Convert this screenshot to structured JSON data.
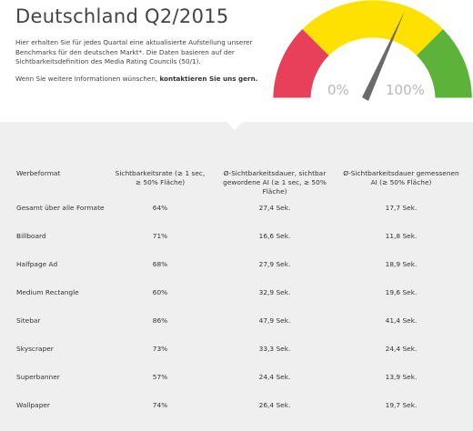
{
  "title": "Deutschland Q2/2015",
  "intro": "Hier erhalten Sie für jedes Quartal eine aktualisierte Aufstellung unserer Benchmarks für den deutschen Markt*. Die Daten basieren auf der Sichtbarkeitsdefinition des Media Rating Councils (50/1).",
  "more_text": "Wenn Sie weitere Informationen wünschen, ",
  "more_link": "kontaktieren Sie uns gern.",
  "gauge": {
    "min_label": "0%",
    "max_label": "100%",
    "colors": {
      "red": "#e8405a",
      "yellow": "#ffe100",
      "green": "#5db339",
      "needle": "#6a6a6a"
    }
  },
  "table": {
    "headers": [
      "Werbeformat",
      "Sichtbarkeitsrate (≥ 1 sec, ≥ 50% Fläche)",
      "Ø-Sichtbarkeitsdauer, sichtbar gewordene AI (≥ 1 sec, ≥ 50% Fläche)",
      "Ø-Sichtbarkeitsdauer gemessenen AI (≥ 50% Fläche)"
    ],
    "rows": [
      [
        "Gesamt über alle Formate",
        "64%",
        "27,4 Sek.",
        "17,7 Sek."
      ],
      [
        "Billboard",
        "71%",
        "16,6 Sek.",
        "11,8 Sek."
      ],
      [
        "Halfpage Ad",
        "68%",
        "27,9 Sek.",
        "18,9 Sek."
      ],
      [
        "Medium Rectangle",
        "60%",
        "32,9 Sek.",
        "19,6 Sek."
      ],
      [
        "Sitebar",
        "86%",
        "47,9 Sek.",
        "41,4 Sek."
      ],
      [
        "Skyscraper",
        "73%",
        "33,3 Sek.",
        "24,4 Sek."
      ],
      [
        "Superbanner",
        "57%",
        "24,4 Sek.",
        "13,9 Sek."
      ],
      [
        "Wallpaper",
        "74%",
        "26,4 Sek.",
        "19,7 Sek."
      ]
    ]
  }
}
